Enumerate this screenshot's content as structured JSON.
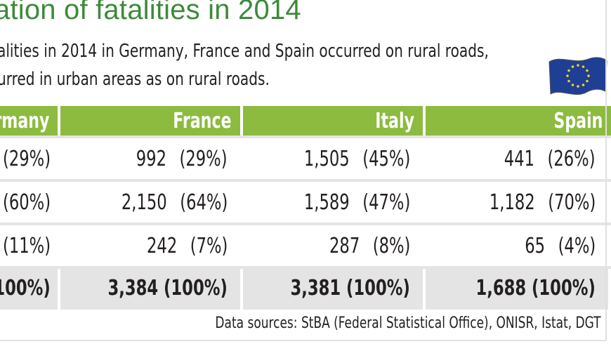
{
  "title": "ation of fatalities in 2014",
  "subtitle_lines": [
    "alities in 2014 in Germany, France and Spain occurred on rural roads,",
    "urred in urban areas as on rural roads."
  ],
  "flag_icon": "eu-flag-icon",
  "columns": [
    "rmany",
    "France",
    "Italy",
    "Spain"
  ],
  "rows": [
    {
      "cells": [
        {
          "num": "",
          "pct": "(29%)"
        },
        {
          "num": "992",
          "pct": "(29%)"
        },
        {
          "num": "1,505",
          "pct": "(45%)"
        },
        {
          "num": "441",
          "pct": "(26%)"
        }
      ]
    },
    {
      "cells": [
        {
          "num": "",
          "pct": "(60%)"
        },
        {
          "num": "2,150",
          "pct": "(64%)"
        },
        {
          "num": "1,589",
          "pct": "(47%)"
        },
        {
          "num": "1,182",
          "pct": "(70%)"
        }
      ]
    },
    {
      "cells": [
        {
          "num": "",
          "pct": "(11%)"
        },
        {
          "num": "242",
          "pct": "(7%)"
        },
        {
          "num": "287",
          "pct": "(8%)"
        },
        {
          "num": "65",
          "pct": "(4%)"
        }
      ]
    }
  ],
  "totals": [
    "100%)",
    "3,384 (100%)",
    "3,381 (100%)",
    "1,688 (100%)"
  ],
  "source": "Data sources: StBA (Federal Statistical Office), ONISR, Istat, DGT",
  "colors": {
    "title": "#3d8a3a",
    "header": "#8cbb3f",
    "grid": "#e4e4e4"
  }
}
